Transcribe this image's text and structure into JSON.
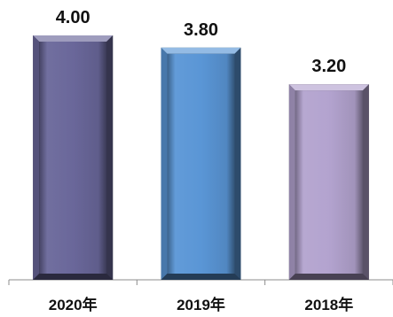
{
  "chart_data": {
    "type": "bar",
    "categories": [
      "2020年",
      "2019年",
      "2018年"
    ],
    "values": [
      4.0,
      3.8,
      3.2
    ],
    "value_labels": [
      "4.00",
      "3.80",
      "3.20"
    ],
    "colors": [
      "#6a679a",
      "#5a96d6",
      "#b3a3cf"
    ],
    "title": "",
    "xlabel": "",
    "ylabel": "",
    "ylim": [
      0,
      4.0
    ],
    "grid": false,
    "legend": "none"
  }
}
